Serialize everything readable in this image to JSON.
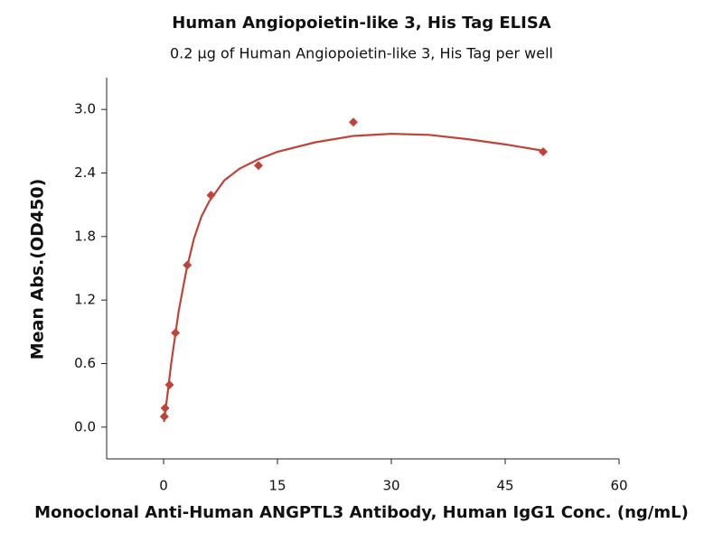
{
  "chart_data": {
    "type": "scatter",
    "title": "Human Angiopoietin-like 3, His Tag ELISA",
    "subtitle": "0.2 µg of Human Angiopoietin-like 3, His Tag per well",
    "x_label": "Monoclonal Anti-Human ANGPTL3 Antibody, Human IgG1 Conc. (ng/mL)",
    "y_label": "Mean Abs.(OD450)",
    "color": "#c0433a",
    "x": [
      0.098,
      0.195,
      0.781,
      1.5625,
      3.125,
      6.25,
      12.5,
      25,
      50
    ],
    "values": [
      0.1,
      0.18,
      0.4,
      0.89,
      1.53,
      2.19,
      2.47,
      2.88,
      2.6
    ],
    "fit_curve": {
      "x": [
        0.05,
        0.5,
        1,
        2,
        3,
        4,
        5,
        6,
        8,
        10,
        12.5,
        15,
        20,
        25,
        30,
        35,
        40,
        45,
        50
      ],
      "values": [
        0.05,
        0.3,
        0.6,
        1.1,
        1.48,
        1.78,
        1.99,
        2.13,
        2.33,
        2.44,
        2.53,
        2.6,
        2.69,
        2.75,
        2.77,
        2.76,
        2.72,
        2.67,
        2.61
      ]
    },
    "xlim": [
      -7.5,
      60
    ],
    "ylim": [
      -0.3,
      3.3
    ],
    "xticks": [
      0,
      15,
      30,
      45,
      60
    ],
    "yticks": [
      {
        "value": 0,
        "label": "0.0"
      },
      0.6,
      1.2,
      1.8,
      2.4,
      {
        "value": 3,
        "label": "3.0"
      }
    ]
  }
}
